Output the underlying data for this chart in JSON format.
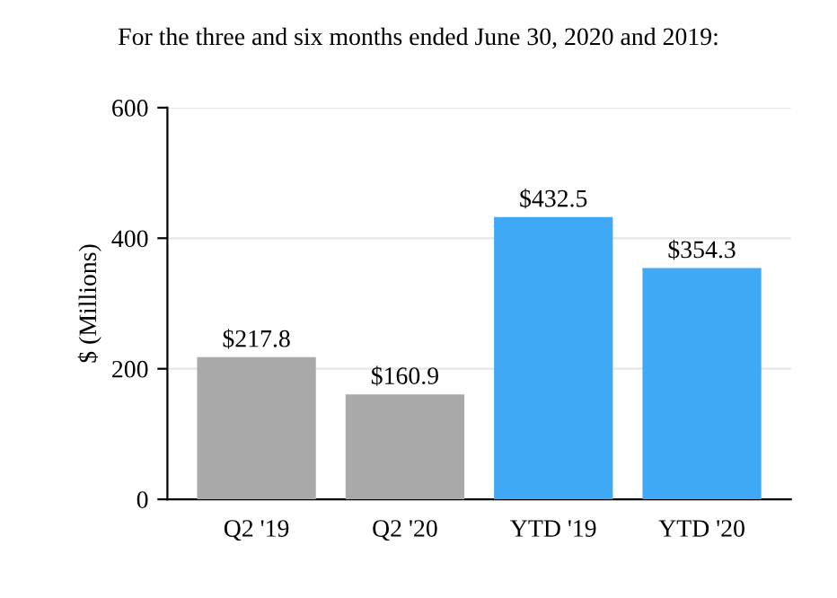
{
  "chart_data": {
    "type": "bar",
    "title": "For the three and six months ended June 30, 2020 and 2019:",
    "ylabel": "$ (Millions)",
    "categories": [
      "Q2 '19",
      "Q2 '20",
      "YTD '19",
      "YTD '20"
    ],
    "values": [
      217.8,
      160.9,
      432.5,
      354.3
    ],
    "colors": [
      "#a9a9a9",
      "#a9a9a9",
      "#3fa9f5",
      "#3fa9f5"
    ],
    "value_labels": [
      "$217.8",
      "$160.9",
      "$432.5",
      "$354.3"
    ],
    "ylim": [
      0,
      600
    ],
    "yticks": [
      0,
      200,
      400,
      600
    ],
    "grid": "y",
    "legend": false
  }
}
